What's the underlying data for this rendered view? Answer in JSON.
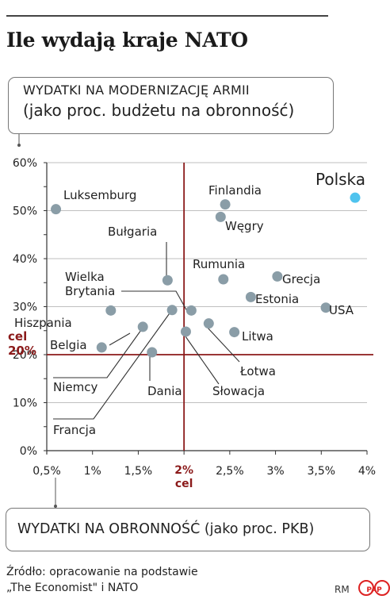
{
  "title": "Ile wydają kraje NATO",
  "y_axis_box": {
    "line1": "WYDATKI NA MODERNIZACJĘ ARMII",
    "line2": "(jako proc. budżetu na obronność)"
  },
  "x_axis_box": {
    "text": "WYDATKI NA OBRONNOŚĆ (jako proc. PKB)"
  },
  "source": {
    "line1": "Źródło: opracowanie na podstawie",
    "line2": "„The Economist\" i NATO"
  },
  "credit": "RM",
  "agency_logo": "PAP",
  "colors": {
    "dot": "#8a9da7",
    "highlight": "#4fc3ee",
    "target": "#8b1a1a",
    "leader": "#333333",
    "grid": "#bfbfbf"
  },
  "chart_data": {
    "type": "scatter",
    "xlim": [
      0.5,
      4
    ],
    "ylim": [
      0,
      60
    ],
    "x_ticks": [
      "0,5%",
      "1%",
      "1,5%",
      "2%",
      "2,5%",
      "3%",
      "3,5%",
      "4%"
    ],
    "y_ticks": [
      "0%",
      "10%",
      "20%",
      "30%",
      "40%",
      "50%",
      "60%"
    ],
    "grid": "horizontal",
    "target": {
      "x": 2,
      "y": 20,
      "x_label_value": "2%",
      "x_label_word": "cel",
      "y_label_word": "cel",
      "y_label_value": "20%"
    },
    "points": [
      {
        "name": "Luksemburg",
        "x": 0.6,
        "y": 50.3
      },
      {
        "name": "Finlandia",
        "x": 2.45,
        "y": 51.3
      },
      {
        "name": "Polska",
        "x": 3.87,
        "y": 52.7,
        "highlight": true
      },
      {
        "name": "Węgry",
        "x": 2.4,
        "y": 48.7
      },
      {
        "name": "Bułgaria",
        "x": 1.82,
        "y": 35.5
      },
      {
        "name": "Rumunia",
        "x": 2.43,
        "y": 35.7
      },
      {
        "name": "Grecja",
        "x": 3.02,
        "y": 36.3
      },
      {
        "name": "Estonia",
        "x": 2.73,
        "y": 32.0
      },
      {
        "name": "USA",
        "x": 3.55,
        "y": 29.8
      },
      {
        "name": "Wielka Brytania",
        "x": 2.08,
        "y": 29.2
      },
      {
        "name": "Hiszpania",
        "x": 1.2,
        "y": 29.2
      },
      {
        "name": "Francja",
        "x": 1.87,
        "y": 29.3
      },
      {
        "name": "Niemcy",
        "x": 1.55,
        "y": 25.8
      },
      {
        "name": "Łotwa",
        "x": 2.27,
        "y": 26.5
      },
      {
        "name": "Litwa",
        "x": 2.55,
        "y": 24.7
      },
      {
        "name": "Słowacja",
        "x": 2.02,
        "y": 24.8
      },
      {
        "name": "Belgia",
        "x": 1.1,
        "y": 21.5
      },
      {
        "name": "Dania",
        "x": 1.65,
        "y": 20.5
      }
    ]
  }
}
